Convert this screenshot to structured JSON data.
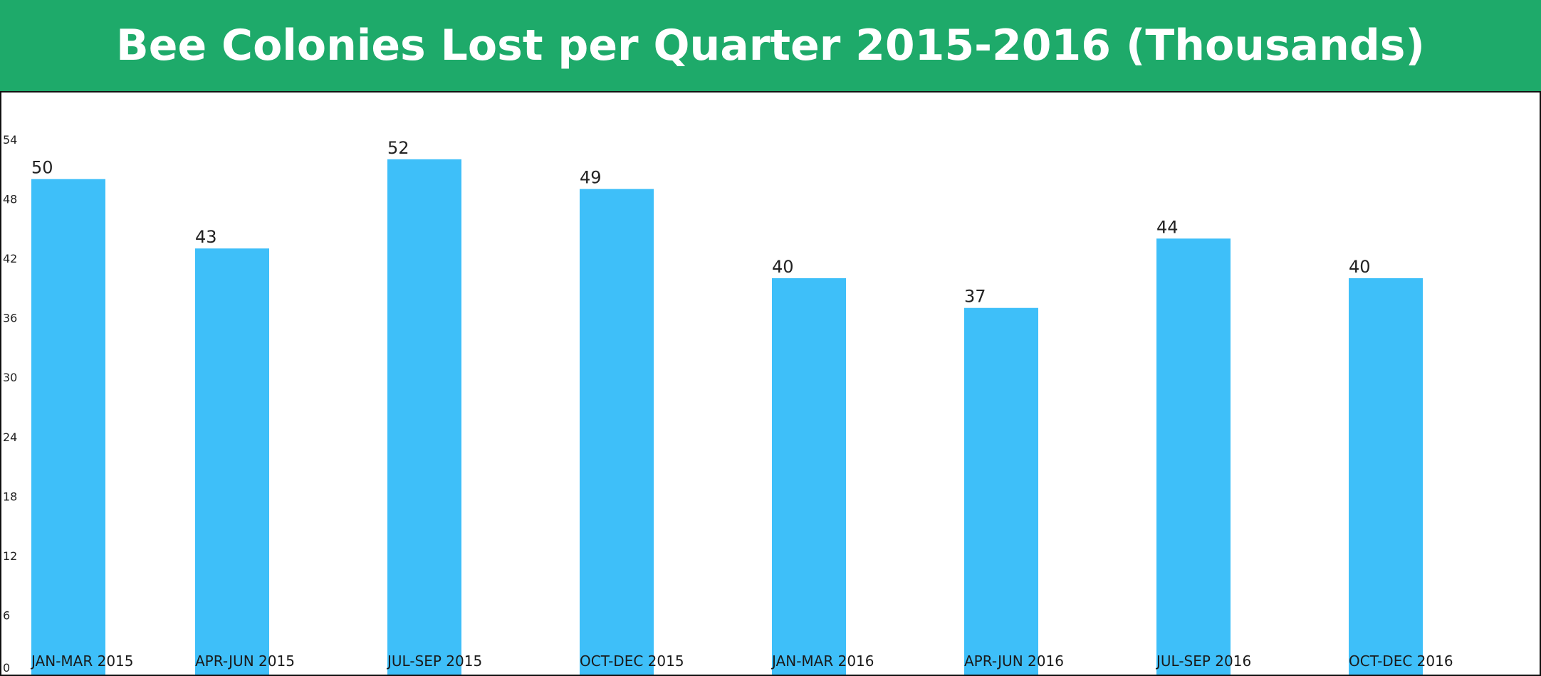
{
  "header": {
    "title": "Bee Colonies Lost per Quarter 2015-2016 (Thousands)",
    "background_color": "#1eaa6a"
  },
  "chart_data": {
    "type": "bar",
    "title": "Bee Colonies Lost per Quarter 2015-2016 (Thousands)",
    "xlabel": "",
    "ylabel": "",
    "categories": [
      "JAN-MAR 2015",
      "APR-JUN 2015",
      "JUL-SEP 2015",
      "OCT-DEC 2015",
      "JAN-MAR 2016",
      "APR-JUN 2016",
      "JUL-SEP 2016",
      "OCT-DEC 2016"
    ],
    "values": [
      50,
      43,
      52,
      49,
      40,
      37,
      44,
      40
    ],
    "data_labels": [
      "50",
      "43",
      "52",
      "49",
      "40",
      "37",
      "44",
      "40"
    ],
    "y_ticks": [
      0,
      6,
      12,
      18,
      24,
      30,
      36,
      42,
      48,
      54
    ],
    "ylim": [
      0,
      54
    ],
    "grid": false,
    "legend": "none",
    "bar_color": "#3ebff9"
  }
}
